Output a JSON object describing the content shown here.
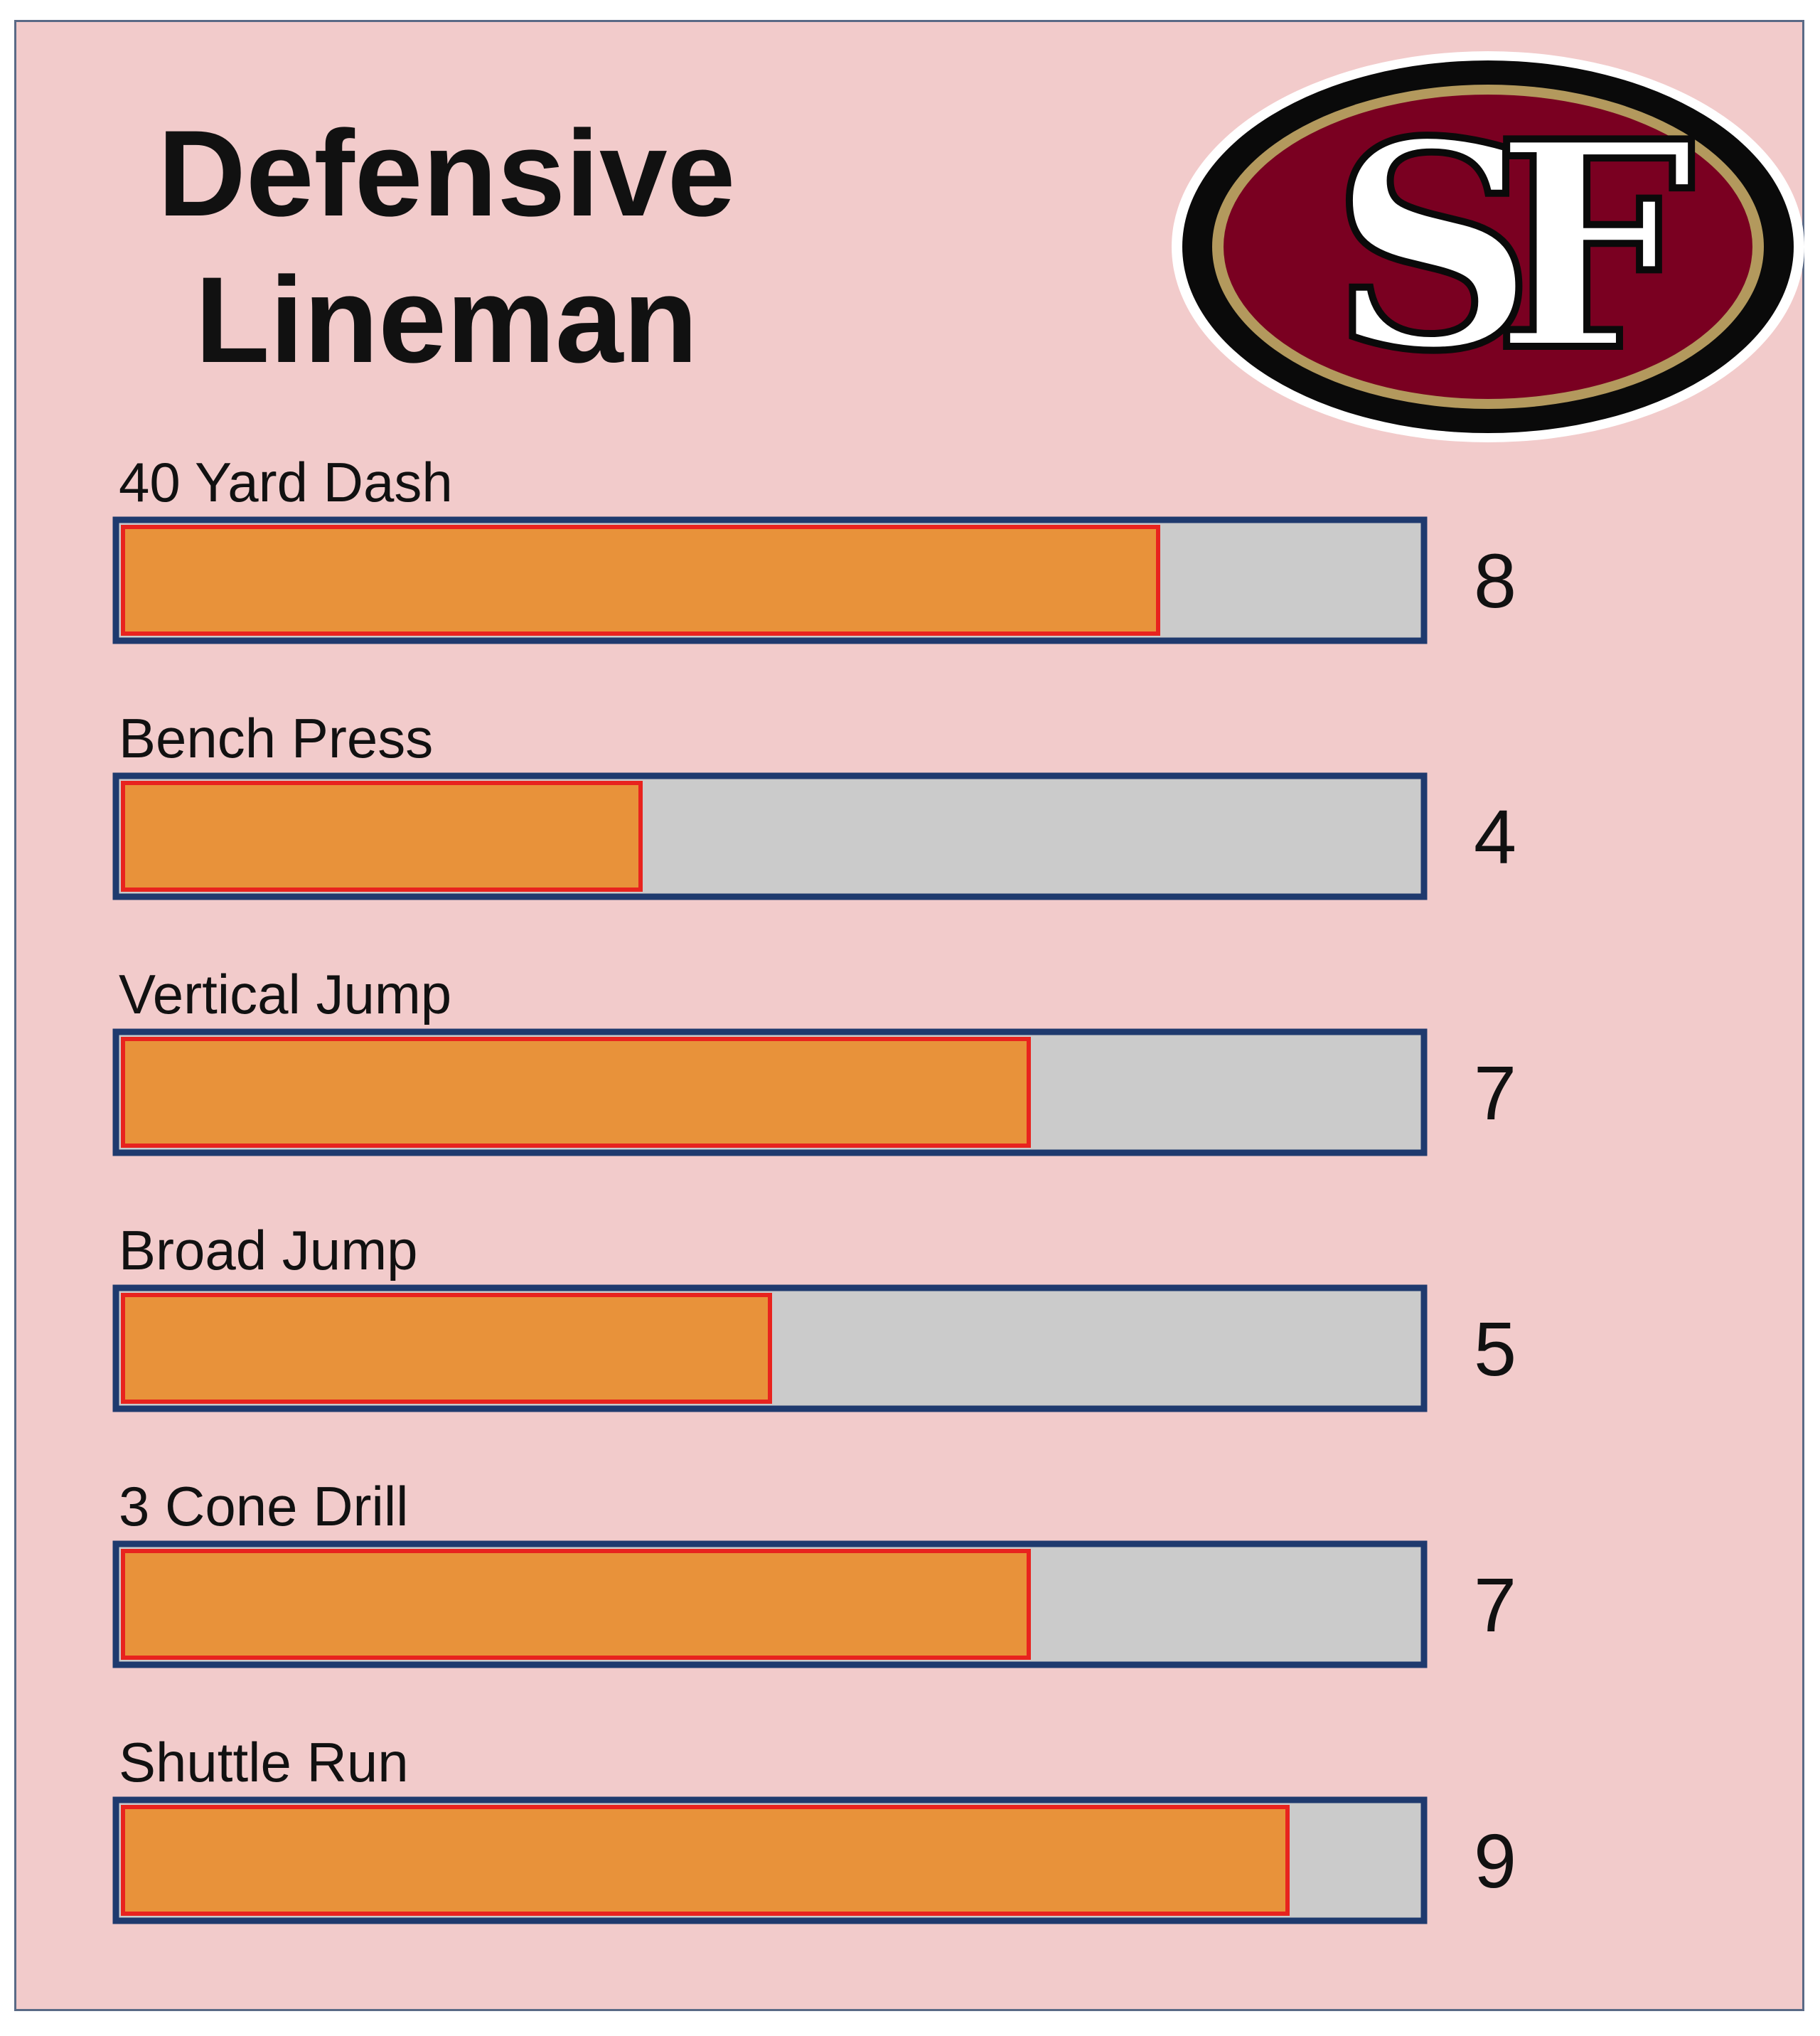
{
  "title_lines": [
    "Defensive",
    "Lineman"
  ],
  "logo": {
    "text": "SF",
    "icon": "sf-49ers-oval-logo"
  },
  "colors": {
    "background": "#f2cbcb",
    "bar_fill": "#e8923a",
    "bar_fill_border": "#e8231e",
    "track": "#cbcbcb",
    "track_border": "#1f3a6e",
    "logo_red": "#7a0021",
    "logo_gold": "#b3995d",
    "logo_black": "#0a0a0a"
  },
  "chart_data": {
    "type": "bar",
    "orientation": "horizontal",
    "title": "Defensive Lineman",
    "categories": [
      "40 Yard Dash",
      "Bench Press",
      "Vertical Jump",
      "Broad Jump",
      "3 Cone Drill",
      "Shuttle Run"
    ],
    "values": [
      8,
      4,
      7,
      5,
      7,
      9
    ],
    "xlim": [
      0,
      10
    ],
    "grid": false
  }
}
